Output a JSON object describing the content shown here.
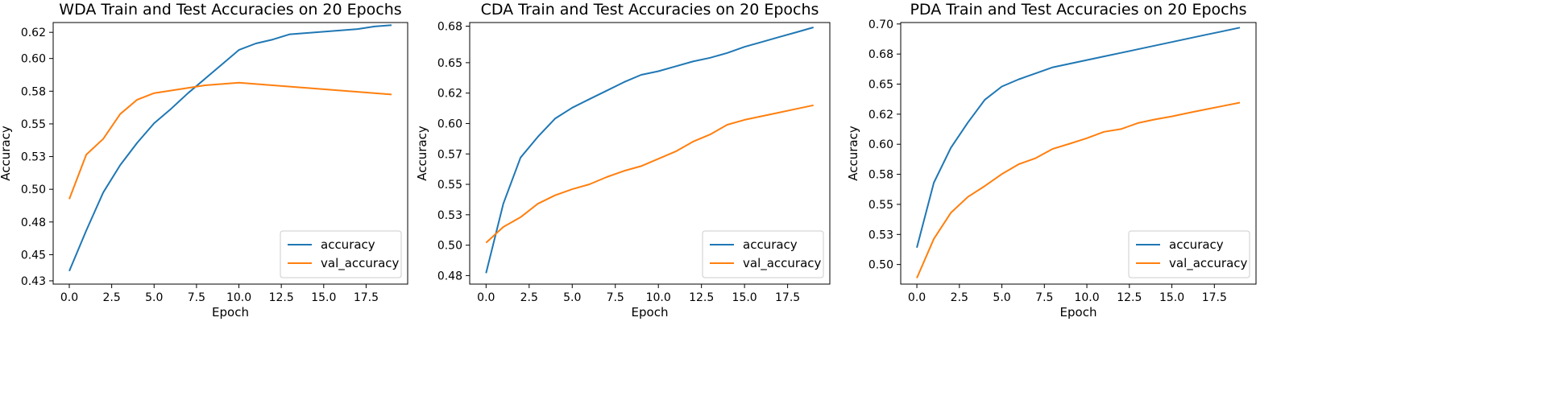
{
  "colors": {
    "accuracy": "#1f77b4",
    "val_accuracy": "#ff7f0e",
    "axis": "#000000",
    "legend_border": "#cccccc"
  },
  "chart_data": [
    {
      "type": "line",
      "title": "WDA Train and Test Accuracies on 20 Epochs",
      "xlabel": "Epoch",
      "ylabel": "Accuracy",
      "xlim": [
        -0.95,
        19.95
      ],
      "ylim": [
        0.4275,
        0.6275
      ],
      "xticks": [
        0,
        2.5,
        5,
        7.5,
        10,
        12.5,
        15,
        17.5
      ],
      "xtick_labels": [
        "0.0",
        "2.5",
        "5.0",
        "7.5",
        "10.0",
        "12.5",
        "15.0",
        "17.5"
      ],
      "yticks": [
        0.43,
        0.45,
        0.475,
        0.5,
        0.525,
        0.55,
        0.575,
        0.6,
        0.62
      ],
      "ytick_labels": [
        "0.43",
        "0.45",
        "0.48",
        "0.50",
        "0.53",
        "0.55",
        "0.58",
        "0.60",
        "0.62"
      ],
      "x": [
        0,
        1,
        2,
        3,
        4,
        5,
        6,
        7,
        8,
        9,
        10,
        11,
        12,
        13,
        14,
        15,
        16,
        17,
        18,
        19
      ],
      "series": [
        {
          "name": "accuracy",
          "values": [
            0.4375,
            0.4685,
            0.4975,
            0.5185,
            0.5355,
            0.5505,
            0.5615,
            0.5735,
            0.5845,
            0.5955,
            0.6065,
            0.6115,
            0.6145,
            0.6185,
            0.6195,
            0.6205,
            0.6215,
            0.6225,
            0.6245,
            0.6255
          ]
        },
        {
          "name": "val_accuracy",
          "values": [
            0.4925,
            0.5265,
            0.5385,
            0.5575,
            0.5685,
            0.5735,
            0.5755,
            0.5775,
            0.5795,
            0.5805,
            0.5815,
            0.5805,
            0.5795,
            0.5785,
            0.5775,
            0.5765,
            0.5755,
            0.5745,
            0.5735,
            0.5725
          ]
        }
      ],
      "legend": [
        "accuracy",
        "val_accuracy"
      ],
      "legend_loc": "lower-right"
    },
    {
      "type": "line",
      "title": "CDA Train and Test Accuracies on 20 Epochs",
      "xlabel": "Epoch",
      "ylabel": "Accuracy",
      "xlim": [
        -0.95,
        19.95
      ],
      "ylim": [
        0.468,
        0.683
      ],
      "xticks": [
        0,
        2.5,
        5,
        7.5,
        10,
        12.5,
        15,
        17.5
      ],
      "xtick_labels": [
        "0.0",
        "2.5",
        "5.0",
        "7.5",
        "10.0",
        "12.5",
        "15.0",
        "17.5"
      ],
      "yticks": [
        0.475,
        0.5,
        0.525,
        0.55,
        0.575,
        0.6,
        0.625,
        0.65,
        0.68
      ],
      "ytick_labels": [
        "0.48",
        "0.50",
        "0.53",
        "0.55",
        "0.57",
        "0.60",
        "0.62",
        "0.65",
        "0.68"
      ],
      "x": [
        0,
        1,
        2,
        3,
        4,
        5,
        6,
        7,
        8,
        9,
        10,
        11,
        12,
        13,
        14,
        15,
        16,
        17,
        18,
        19
      ],
      "series": [
        {
          "name": "accuracy",
          "values": [
            0.477,
            0.534,
            0.572,
            0.589,
            0.604,
            0.613,
            0.62,
            0.627,
            0.634,
            0.64,
            0.643,
            0.647,
            0.651,
            0.654,
            0.658,
            0.663,
            0.667,
            0.671,
            0.675,
            0.679
          ]
        },
        {
          "name": "val_accuracy",
          "values": [
            0.502,
            0.515,
            0.523,
            0.534,
            0.541,
            0.546,
            0.55,
            0.556,
            0.561,
            0.565,
            0.571,
            0.577,
            0.585,
            0.591,
            0.599,
            0.603,
            0.606,
            0.609,
            0.612,
            0.615
          ]
        }
      ],
      "legend": [
        "accuracy",
        "val_accuracy"
      ],
      "legend_loc": "lower-right"
    },
    {
      "type": "line",
      "title": "PDA Train and Test Accuracies on 20 Epochs",
      "xlabel": "Epoch",
      "ylabel": "Accuracy",
      "xlim": [
        -0.95,
        19.95
      ],
      "ylim": [
        0.4837,
        0.7012
      ],
      "xticks": [
        0,
        2.5,
        5,
        7.5,
        10,
        12.5,
        15,
        17.5
      ],
      "xtick_labels": [
        "0.0",
        "2.5",
        "5.0",
        "7.5",
        "10.0",
        "12.5",
        "15.0",
        "17.5"
      ],
      "yticks": [
        0.5,
        0.525,
        0.55,
        0.575,
        0.6,
        0.625,
        0.65,
        0.675,
        0.7
      ],
      "ytick_labels": [
        "0.50",
        "0.53",
        "0.55",
        "0.58",
        "0.60",
        "0.62",
        "0.65",
        "0.68",
        "0.70"
      ],
      "x": [
        0,
        1,
        2,
        3,
        4,
        5,
        6,
        7,
        8,
        9,
        10,
        11,
        12,
        13,
        14,
        15,
        16,
        17,
        18,
        19
      ],
      "series": [
        {
          "name": "accuracy",
          "values": [
            0.514,
            0.568,
            0.597,
            0.618,
            0.637,
            0.648,
            0.654,
            0.659,
            0.664,
            0.667,
            0.67,
            0.673,
            0.676,
            0.679,
            0.682,
            0.685,
            0.688,
            0.691,
            0.694,
            0.697
          ]
        },
        {
          "name": "val_accuracy",
          "values": [
            0.4887,
            0.5213,
            0.543,
            0.5562,
            0.5653,
            0.5752,
            0.5834,
            0.5885,
            0.5962,
            0.6005,
            0.605,
            0.6103,
            0.6126,
            0.6176,
            0.6206,
            0.6232,
            0.6262,
            0.629,
            0.6318,
            0.6346
          ]
        }
      ],
      "legend": [
        "accuracy",
        "val_accuracy"
      ],
      "legend_loc": "lower-right"
    }
  ]
}
